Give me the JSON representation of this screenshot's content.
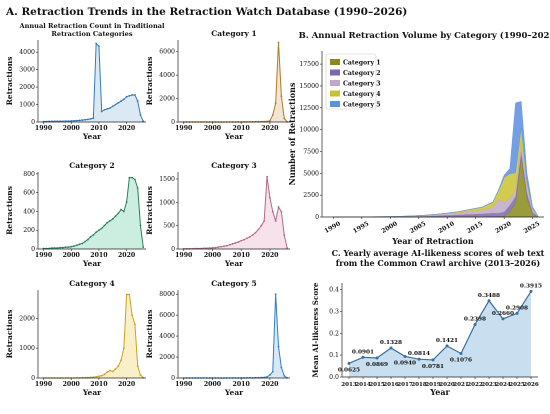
{
  "figure": {
    "title": "A. Retraction Trends in the Retraction Watch Database (1990–2026)"
  },
  "chart_data": [
    {
      "id": "traditional",
      "type": "area",
      "title": "Annual Retraction Count in Traditional Retraction Categories",
      "xlabel": "Year",
      "ylabel": "Retractions",
      "color": "#3a78b4",
      "fill": "#dbe9f5",
      "xlim": [
        1988,
        2027
      ],
      "ylim": [
        0,
        4700
      ],
      "xticks": [
        1990,
        2000,
        2010,
        2020
      ],
      "yticks": [
        0,
        1000,
        2000,
        3000,
        4000
      ],
      "x": [
        1990,
        1991,
        1992,
        1993,
        1994,
        1995,
        1996,
        1997,
        1998,
        1999,
        2000,
        2001,
        2002,
        2003,
        2004,
        2005,
        2006,
        2007,
        2008,
        2009,
        2010,
        2011,
        2012,
        2013,
        2014,
        2015,
        2016,
        2017,
        2018,
        2019,
        2020,
        2021,
        2022,
        2023,
        2024,
        2025,
        2026
      ],
      "y": [
        30,
        30,
        35,
        35,
        40,
        40,
        45,
        45,
        50,
        50,
        60,
        70,
        80,
        90,
        110,
        130,
        150,
        180,
        220,
        4500,
        4350,
        600,
        700,
        750,
        800,
        900,
        1000,
        1100,
        1200,
        1300,
        1450,
        1500,
        1550,
        1550,
        1200,
        400,
        50
      ]
    },
    {
      "id": "cat1",
      "type": "area",
      "title": "Category 1",
      "xlabel": "Year",
      "ylabel": "Retractions",
      "color": "#b07a2a",
      "fill": "#f2e6d2",
      "xlim": [
        1988,
        2027
      ],
      "ylim": [
        0,
        7000
      ],
      "xticks": [
        1990,
        2000,
        2010,
        2020
      ],
      "yticks": [
        0,
        2000,
        4000,
        6000
      ],
      "x": [
        1990,
        1991,
        1992,
        1993,
        1994,
        1995,
        1996,
        1997,
        1998,
        1999,
        2000,
        2001,
        2002,
        2003,
        2004,
        2005,
        2006,
        2007,
        2008,
        2009,
        2010,
        2011,
        2012,
        2013,
        2014,
        2015,
        2016,
        2017,
        2018,
        2019,
        2020,
        2021,
        2022,
        2023,
        2024,
        2025,
        2026
      ],
      "y": [
        0,
        0,
        0,
        0,
        0,
        0,
        0,
        0,
        0,
        0,
        0,
        0,
        0,
        0,
        0,
        0,
        0,
        0,
        0,
        5,
        5,
        10,
        10,
        10,
        15,
        20,
        25,
        30,
        40,
        50,
        100,
        600,
        1600,
        6800,
        2200,
        300,
        10
      ]
    },
    {
      "id": "cat2",
      "type": "area",
      "title": "Category 2",
      "xlabel": "Year",
      "ylabel": "Retractions",
      "color": "#2e7d5b",
      "fill": "#cbeee0",
      "xlim": [
        1988,
        2027
      ],
      "ylim": [
        0,
        820
      ],
      "xticks": [
        1990,
        2000,
        2010,
        2020
      ],
      "yticks": [
        0,
        200,
        400,
        600,
        800
      ],
      "x": [
        1990,
        1991,
        1992,
        1993,
        1994,
        1995,
        1996,
        1997,
        1998,
        1999,
        2000,
        2001,
        2002,
        2003,
        2004,
        2005,
        2006,
        2007,
        2008,
        2009,
        2010,
        2011,
        2012,
        2013,
        2014,
        2015,
        2016,
        2017,
        2018,
        2019,
        2020,
        2021,
        2022,
        2023,
        2024,
        2025,
        2026
      ],
      "y": [
        5,
        5,
        5,
        10,
        10,
        10,
        15,
        15,
        20,
        20,
        25,
        30,
        40,
        50,
        60,
        80,
        100,
        130,
        150,
        180,
        200,
        220,
        250,
        280,
        300,
        320,
        350,
        380,
        420,
        400,
        500,
        760,
        760,
        740,
        650,
        250,
        20
      ]
    },
    {
      "id": "cat3",
      "type": "area",
      "title": "Category 3",
      "xlabel": "Year",
      "ylabel": "Retractions",
      "color": "#b0698a",
      "fill": "#f7e1ea",
      "xlim": [
        1988,
        2027
      ],
      "ylim": [
        0,
        1650
      ],
      "xticks": [
        1990,
        2000,
        2010,
        2020
      ],
      "yticks": [
        0,
        500,
        1000,
        1500
      ],
      "x": [
        1990,
        1991,
        1992,
        1993,
        1994,
        1995,
        1996,
        1997,
        1998,
        1999,
        2000,
        2001,
        2002,
        2003,
        2004,
        2005,
        2006,
        2007,
        2008,
        2009,
        2010,
        2011,
        2012,
        2013,
        2014,
        2015,
        2016,
        2017,
        2018,
        2019,
        2020,
        2021,
        2022,
        2023,
        2024,
        2025,
        2026
      ],
      "y": [
        5,
        5,
        5,
        5,
        10,
        10,
        10,
        15,
        15,
        20,
        25,
        30,
        40,
        50,
        60,
        70,
        90,
        110,
        130,
        150,
        180,
        200,
        230,
        260,
        300,
        350,
        420,
        500,
        600,
        1550,
        1100,
        800,
        600,
        900,
        800,
        300,
        20
      ]
    },
    {
      "id": "cat4",
      "type": "area",
      "title": "Category 4",
      "xlabel": "Year",
      "ylabel": "Retractions",
      "color": "#c9a227",
      "fill": "#faf0c8",
      "xlim": [
        1988,
        2027
      ],
      "ylim": [
        0,
        2950
      ],
      "xticks": [
        1990,
        2000,
        2010,
        2020
      ],
      "yticks": [
        0,
        1000,
        2000
      ],
      "x": [
        1990,
        1991,
        1992,
        1993,
        1994,
        1995,
        1996,
        1997,
        1998,
        1999,
        2000,
        2001,
        2002,
        2003,
        2004,
        2005,
        2006,
        2007,
        2008,
        2009,
        2010,
        2011,
        2012,
        2013,
        2014,
        2015,
        2016,
        2017,
        2018,
        2019,
        2020,
        2021,
        2022,
        2023,
        2024,
        2025,
        2026
      ],
      "y": [
        0,
        0,
        0,
        0,
        0,
        0,
        0,
        0,
        0,
        0,
        0,
        0,
        5,
        5,
        10,
        10,
        15,
        20,
        30,
        40,
        60,
        80,
        120,
        200,
        250,
        220,
        300,
        400,
        600,
        1000,
        2800,
        2800,
        2100,
        1800,
        400,
        100,
        10
      ]
    },
    {
      "id": "cat5",
      "type": "area",
      "title": "Category 5",
      "xlabel": "Year",
      "ylabel": "Retractions",
      "color": "#2f7fc8",
      "fill": "#d8e8f7",
      "xlim": [
        1988,
        2027
      ],
      "ylim": [
        0,
        8400
      ],
      "xticks": [
        1990,
        2000,
        2010,
        2020
      ],
      "yticks": [
        0,
        2000,
        4000,
        6000,
        8000
      ],
      "x": [
        1990,
        1991,
        1992,
        1993,
        1994,
        1995,
        1996,
        1997,
        1998,
        1999,
        2000,
        2001,
        2002,
        2003,
        2004,
        2005,
        2006,
        2007,
        2008,
        2009,
        2010,
        2011,
        2012,
        2013,
        2014,
        2015,
        2016,
        2017,
        2018,
        2019,
        2020,
        2021,
        2022,
        2023,
        2024,
        2025,
        2026
      ],
      "y": [
        0,
        0,
        0,
        0,
        0,
        0,
        0,
        0,
        0,
        0,
        0,
        0,
        0,
        0,
        0,
        0,
        0,
        0,
        0,
        0,
        5,
        5,
        10,
        10,
        15,
        20,
        30,
        40,
        60,
        100,
        300,
        600,
        8000,
        3000,
        1000,
        200,
        10
      ]
    },
    {
      "id": "stacked",
      "type": "area",
      "title": "B. Annual Retraction Volume by Category (1990–2026)",
      "xlabel": "Year of Retraction",
      "ylabel": "Number of Retractions",
      "xlim": [
        1988,
        2027
      ],
      "ylim": [
        0,
        19000
      ],
      "xticks": [
        1990,
        1995,
        2000,
        2005,
        2010,
        2015,
        2020,
        2025
      ],
      "yticks": [
        0,
        2500,
        5000,
        7500,
        10000,
        12500,
        15000,
        17500
      ],
      "legend": "top-left",
      "x": [
        1990,
        1992,
        1994,
        1996,
        1998,
        2000,
        2002,
        2004,
        2006,
        2008,
        2010,
        2012,
        2014,
        2016,
        2018,
        2019,
        2020,
        2021,
        2022,
        2023,
        2024,
        2025,
        2026
      ],
      "series": [
        {
          "name": "Category 1",
          "color": "#8a8a1a",
          "values": [
            0,
            0,
            0,
            0,
            0,
            0,
            0,
            0,
            0,
            0,
            5,
            10,
            15,
            25,
            40,
            50,
            100,
            600,
            1600,
            6800,
            2200,
            300,
            10
          ]
        },
        {
          "name": "Category 2",
          "color": "#7a6aa8",
          "values": [
            5,
            5,
            10,
            15,
            20,
            25,
            40,
            60,
            100,
            150,
            200,
            250,
            300,
            350,
            420,
            400,
            500,
            760,
            760,
            740,
            650,
            250,
            20
          ]
        },
        {
          "name": "Category 3",
          "color": "#c0a8c8",
          "values": [
            5,
            5,
            10,
            10,
            15,
            25,
            40,
            60,
            90,
            130,
            180,
            230,
            300,
            420,
            600,
            1550,
            1100,
            800,
            600,
            900,
            800,
            300,
            20
          ]
        },
        {
          "name": "Category 4",
          "color": "#c9c234",
          "values": [
            0,
            0,
            0,
            0,
            0,
            0,
            5,
            10,
            15,
            30,
            60,
            120,
            250,
            300,
            600,
            1000,
            2800,
            2800,
            2100,
            1800,
            400,
            100,
            10
          ]
        },
        {
          "name": "Category 5",
          "color": "#5b8fe0",
          "values": [
            0,
            0,
            0,
            0,
            0,
            0,
            0,
            0,
            0,
            0,
            5,
            10,
            15,
            30,
            60,
            100,
            300,
            600,
            8000,
            3000,
            1000,
            200,
            10
          ]
        }
      ]
    },
    {
      "id": "ai",
      "type": "area",
      "title": "C. Yearly average AI-likeness scores of web text from the Common Crawl archive (2013–2026)",
      "xlabel": "Year",
      "ylabel": "Mean AI-likeness Score",
      "color": "#3a6f9c",
      "fill": "#c9dff0",
      "xlim": [
        2012.5,
        2026.5
      ],
      "ylim": [
        0,
        0.43
      ],
      "xticks": [
        2013,
        2014,
        2015,
        2016,
        2017,
        2018,
        2019,
        2020,
        2021,
        2022,
        2023,
        2024,
        2025,
        2026
      ],
      "yticks": [
        0.0,
        0.1,
        0.2,
        0.3,
        0.4
      ],
      "x": [
        2013,
        2014,
        2015,
        2016,
        2017,
        2018,
        2019,
        2020,
        2021,
        2022,
        2023,
        2024,
        2025,
        2026
      ],
      "y": [
        0.0625,
        0.0901,
        0.0869,
        0.1328,
        0.094,
        0.0814,
        0.0781,
        0.1421,
        0.1076,
        0.2398,
        0.3488,
        0.266,
        0.2908,
        0.3915
      ],
      "labels": [
        "0.0625",
        "0.0901",
        "0.0869",
        "0.1328",
        "0.0940",
        "0.0814",
        "0.0781",
        "0.1421",
        "0.1076",
        "0.2398",
        "0.3488",
        "0.2660",
        "0.2908",
        "0.3915"
      ]
    }
  ]
}
